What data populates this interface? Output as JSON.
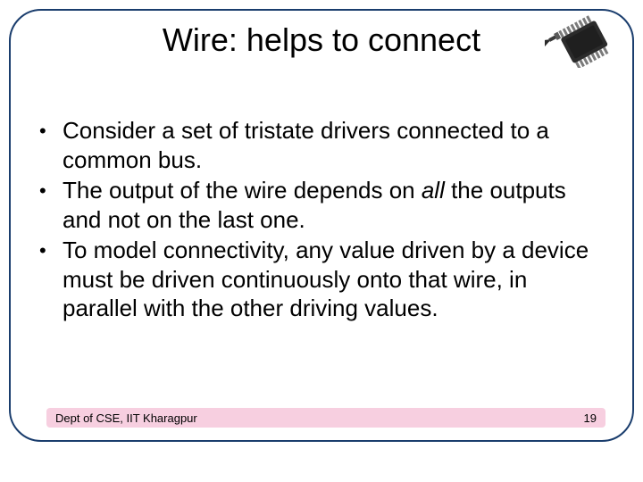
{
  "slide": {
    "title": "Wire: helps to connect",
    "title_fontsize": 36,
    "title_color": "#000000",
    "frame_border_color": "#1a3d6d",
    "frame_border_radius": 36,
    "background_color": "#ffffff",
    "bullets": [
      {
        "text_html": "Consider a set of tristate drivers connected to a common bus."
      },
      {
        "text_html": "The output of the wire depends on <i>all</i> the outputs and not on the last one."
      },
      {
        "text_html": "To model connectivity, any value driven by a device must be driven continuously onto that wire, in parallel with the other driving values."
      }
    ],
    "bullet_fontsize": 26,
    "bullet_color": "#000000",
    "bullet_marker": "•",
    "footer": {
      "left_text": "Dept of CSE, IIT Kharagpur",
      "right_text": "19",
      "band_color": "#f7cfe0",
      "text_color": "#000000",
      "fontsize": 13
    },
    "icon": {
      "name": "chip-icon",
      "body_color": "#2b2b2b",
      "pin_color": "#7a7a7a",
      "screw_color": "#1a1a1a"
    }
  }
}
